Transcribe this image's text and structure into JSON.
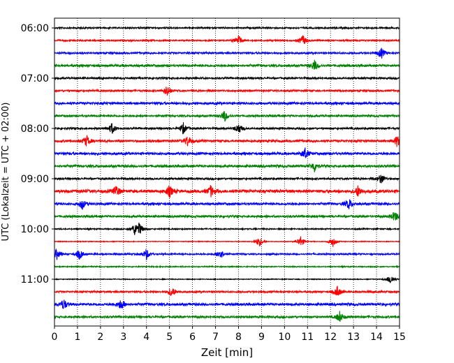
{
  "chart_data": {
    "type": "line",
    "title": "",
    "xlabel": "Zeit  [min]",
    "ylabel": "UTC (Lokalzeit = UTC + 02:00)",
    "xlim": [
      0,
      15
    ],
    "xticks": [
      "0",
      "1",
      "2",
      "3",
      "4",
      "5",
      "6",
      "7",
      "8",
      "9",
      "10",
      "11",
      "12",
      "13",
      "14",
      "15"
    ],
    "yticks": [
      "06:00",
      "07:00",
      "08:00",
      "09:00",
      "10:00",
      "11:00"
    ],
    "grid": "vertical dotted lines at each minute",
    "legend": "none",
    "line_colors": [
      "#000000",
      "#ff0000",
      "#0000ff",
      "#008000"
    ],
    "traces": [
      {
        "start": "06:00",
        "color": "#000000",
        "amplitude": 0.1,
        "events": []
      },
      {
        "start": "06:15",
        "color": "#ff0000",
        "amplitude": 0.1,
        "events": [
          8.0,
          10.8
        ]
      },
      {
        "start": "06:30",
        "color": "#0000ff",
        "amplitude": 0.12,
        "events": [
          14.2
        ]
      },
      {
        "start": "06:45",
        "color": "#008000",
        "amplitude": 0.15,
        "events": [
          11.3
        ]
      },
      {
        "start": "07:00",
        "color": "#000000",
        "amplitude": 0.12,
        "events": []
      },
      {
        "start": "07:15",
        "color": "#ff0000",
        "amplitude": 0.12,
        "events": [
          4.9
        ]
      },
      {
        "start": "07:30",
        "color": "#0000ff",
        "amplitude": 0.15,
        "events": []
      },
      {
        "start": "07:45",
        "color": "#008000",
        "amplitude": 0.13,
        "events": [
          7.4
        ]
      },
      {
        "start": "08:00",
        "color": "#000000",
        "amplitude": 0.12,
        "events": [
          2.5,
          5.6,
          8.0
        ]
      },
      {
        "start": "08:15",
        "color": "#ff0000",
        "amplitude": 0.15,
        "events": [
          1.4,
          5.8,
          14.9
        ]
      },
      {
        "start": "08:30",
        "color": "#0000ff",
        "amplitude": 0.16,
        "events": [
          10.9
        ]
      },
      {
        "start": "08:45",
        "color": "#008000",
        "amplitude": 0.16,
        "events": [
          11.3
        ]
      },
      {
        "start": "09:00",
        "color": "#000000",
        "amplitude": 0.12,
        "events": [
          14.2
        ]
      },
      {
        "start": "09:15",
        "color": "#ff0000",
        "amplitude": 0.2,
        "events": [
          2.7,
          5.0,
          6.8,
          13.2
        ]
      },
      {
        "start": "09:30",
        "color": "#0000ff",
        "amplitude": 0.15,
        "events": [
          1.2,
          12.8
        ]
      },
      {
        "start": "09:45",
        "color": "#008000",
        "amplitude": 0.14,
        "events": [
          14.8
        ]
      },
      {
        "start": "10:00",
        "color": "#000000",
        "amplitude": 0.08,
        "events": [
          3.5,
          3.7
        ]
      },
      {
        "start": "10:15",
        "color": "#ff0000",
        "amplitude": 0.05,
        "events": [
          8.9,
          10.7,
          12.1
        ]
      },
      {
        "start": "10:30",
        "color": "#0000ff",
        "amplitude": 0.1,
        "events": [
          0.1,
          1.1,
          4.0,
          7.2
        ]
      },
      {
        "start": "10:45",
        "color": "#008000",
        "amplitude": 0.07,
        "events": []
      },
      {
        "start": "11:00",
        "color": "#000000",
        "amplitude": 0.05,
        "events": [
          14.6
        ]
      },
      {
        "start": "11:15",
        "color": "#ff0000",
        "amplitude": 0.12,
        "events": [
          5.1,
          12.3
        ]
      },
      {
        "start": "11:30",
        "color": "#0000ff",
        "amplitude": 0.16,
        "events": [
          0.4,
          2.9
        ]
      },
      {
        "start": "11:45",
        "color": "#008000",
        "amplitude": 0.14,
        "events": [
          12.4
        ]
      }
    ]
  }
}
